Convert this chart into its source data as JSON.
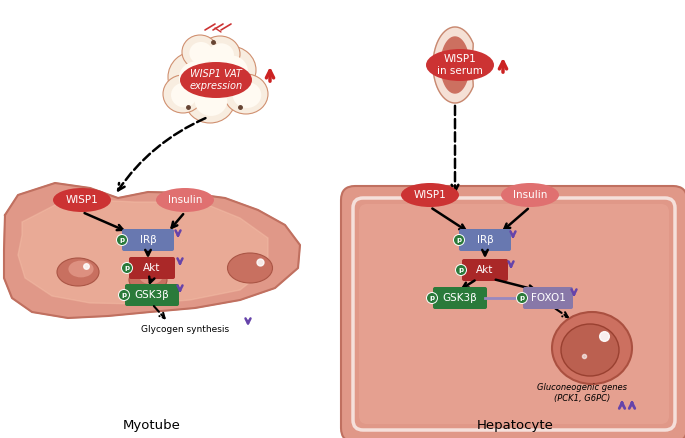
{
  "bg_color": "#ffffff",
  "wisp1_oval_color": "#cc3333",
  "insulin_oval_color": "#e07070",
  "ir_beta_color": "#6878b0",
  "akt_color": "#aa2828",
  "gsk3b_color": "#2a7a3a",
  "foxo1_color": "#8878a8",
  "p_circle_myotube": "#2a7a3a",
  "p_circle_hep": "#2a7a3a",
  "arrow_color": "#111111",
  "purple_arrow_color": "#6644aa",
  "red_arrow_color": "#cc2222",
  "myotube_fill": "#e09888",
  "myotube_edge": "#c07060",
  "myotube_inner": "#f5c0a8",
  "nucleus_fill": "#c87060",
  "hep_fill": "#e09888",
  "hep_edge": "#c07060",
  "hep_inner_border": "#f8d0c0",
  "fat_adipocyte_fill": "#f8ede0",
  "fat_adipocyte_edge": "#d09070",
  "fat_label_color": "#cc3333",
  "title_myotube": "Myotube",
  "title_hepatocyte": "Hepatocyte",
  "wisp1_vat_text": "WISP1 VAT\nexpression",
  "wisp1_serum_text": "WISP1\nin serum",
  "wisp1_text": "WISP1",
  "insulin_text": "Insulin",
  "ir_beta_text": "IRβ",
  "akt_text": "Akt",
  "gsk3b_text": "GSK3β",
  "foxo1_text": "FOXO1",
  "glycogen_text": "Glycogen synthesis",
  "gluconeo_line1": "Gluconeogenic genes",
  "gluconeo_line2": "(PCK1, G6PC)"
}
